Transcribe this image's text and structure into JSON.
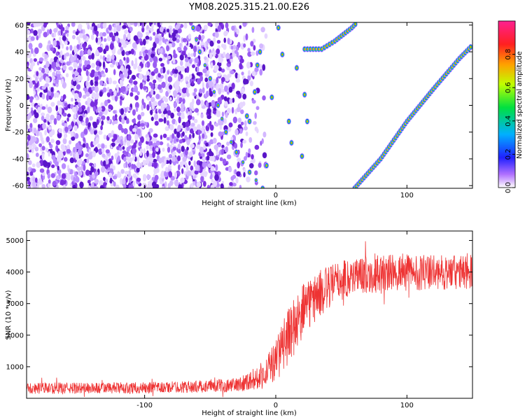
{
  "chart_data": [
    {
      "type": "heatmap",
      "title": "YM08.2025.315.21.00.E26",
      "xlabel": "Height of straight line (km)",
      "ylabel": "Frequency (Hz)",
      "xlim": [
        -190,
        150
      ],
      "ylim": [
        -62,
        62
      ],
      "xticks": [
        -100,
        0,
        100
      ],
      "yticks": [
        -60,
        -40,
        -20,
        0,
        20,
        40,
        60
      ],
      "colorbar": {
        "label": "Normalized spectral amplitude",
        "range": [
          0,
          1
        ],
        "ticks": [
          0.0,
          0.2,
          0.4,
          0.6,
          0.8
        ]
      },
      "features": [
        {
          "name": "noise-region",
          "x_range": [
            -190,
            -30
          ],
          "y_range": [
            -62,
            62
          ]
        },
        {
          "name": "echo-track-1",
          "points": [
            [
              -63,
              58
            ],
            [
              -58,
              40
            ],
            [
              -50,
              20
            ],
            [
              -44,
              0
            ],
            [
              -38,
              -20
            ],
            [
              -30,
              -35
            ],
            [
              -20,
              -50
            ],
            [
              -10,
              -62
            ]
          ]
        },
        {
          "name": "echo-track-2",
          "points": [
            [
              -22,
              -8
            ],
            [
              -20,
              -12
            ],
            [
              -16,
              10
            ],
            [
              -14,
              30
            ],
            [
              -12,
              40
            ],
            [
              -7,
              -45
            ],
            [
              -3,
              6
            ],
            [
              2,
              58
            ],
            [
              5,
              38
            ],
            [
              10,
              -12
            ],
            [
              12,
              -28
            ],
            [
              16,
              28
            ],
            [
              20,
              -38
            ],
            [
              22,
              8
            ],
            [
              24,
              -12
            ]
          ]
        },
        {
          "name": "echo-track-3",
          "points": [
            [
              22,
              42
            ],
            [
              35,
              42
            ],
            [
              45,
              48
            ],
            [
              58,
              58
            ],
            [
              62,
              62
            ]
          ]
        },
        {
          "name": "echo-track-4",
          "points": [
            [
              60,
              -62
            ],
            [
              80,
              -40
            ],
            [
              100,
              -12
            ],
            [
              120,
              12
            ],
            [
              140,
              35
            ],
            [
              150,
              45
            ]
          ]
        }
      ]
    },
    {
      "type": "line",
      "xlabel": "Height of straight line (km)",
      "ylabel": "SNR (10 * v/v)",
      "xlim": [
        -190,
        150
      ],
      "ylim": [
        0,
        5300
      ],
      "xticks": [
        -100,
        0,
        100
      ],
      "yticks": [
        1000,
        2000,
        3000,
        4000,
        5000
      ],
      "series": [
        {
          "name": "SNR",
          "color": "#ee3333",
          "envelope": {
            "x": [
              -190,
              -150,
              -100,
              -60,
              -30,
              -10,
              0,
              10,
              20,
              30,
              40,
              50,
              60,
              80,
              100,
              120,
              150
            ],
            "mean": [
              320,
              320,
              330,
              370,
              420,
              700,
              1200,
              2000,
              2700,
              3200,
              3500,
              3750,
              3900,
              3950,
              4000,
              3980,
              4000
            ],
            "spread": [
              180,
              180,
              180,
              190,
              220,
              400,
              700,
              900,
              900,
              800,
              700,
              650,
              600,
              600,
              600,
              550,
              550
            ]
          }
        }
      ]
    }
  ]
}
